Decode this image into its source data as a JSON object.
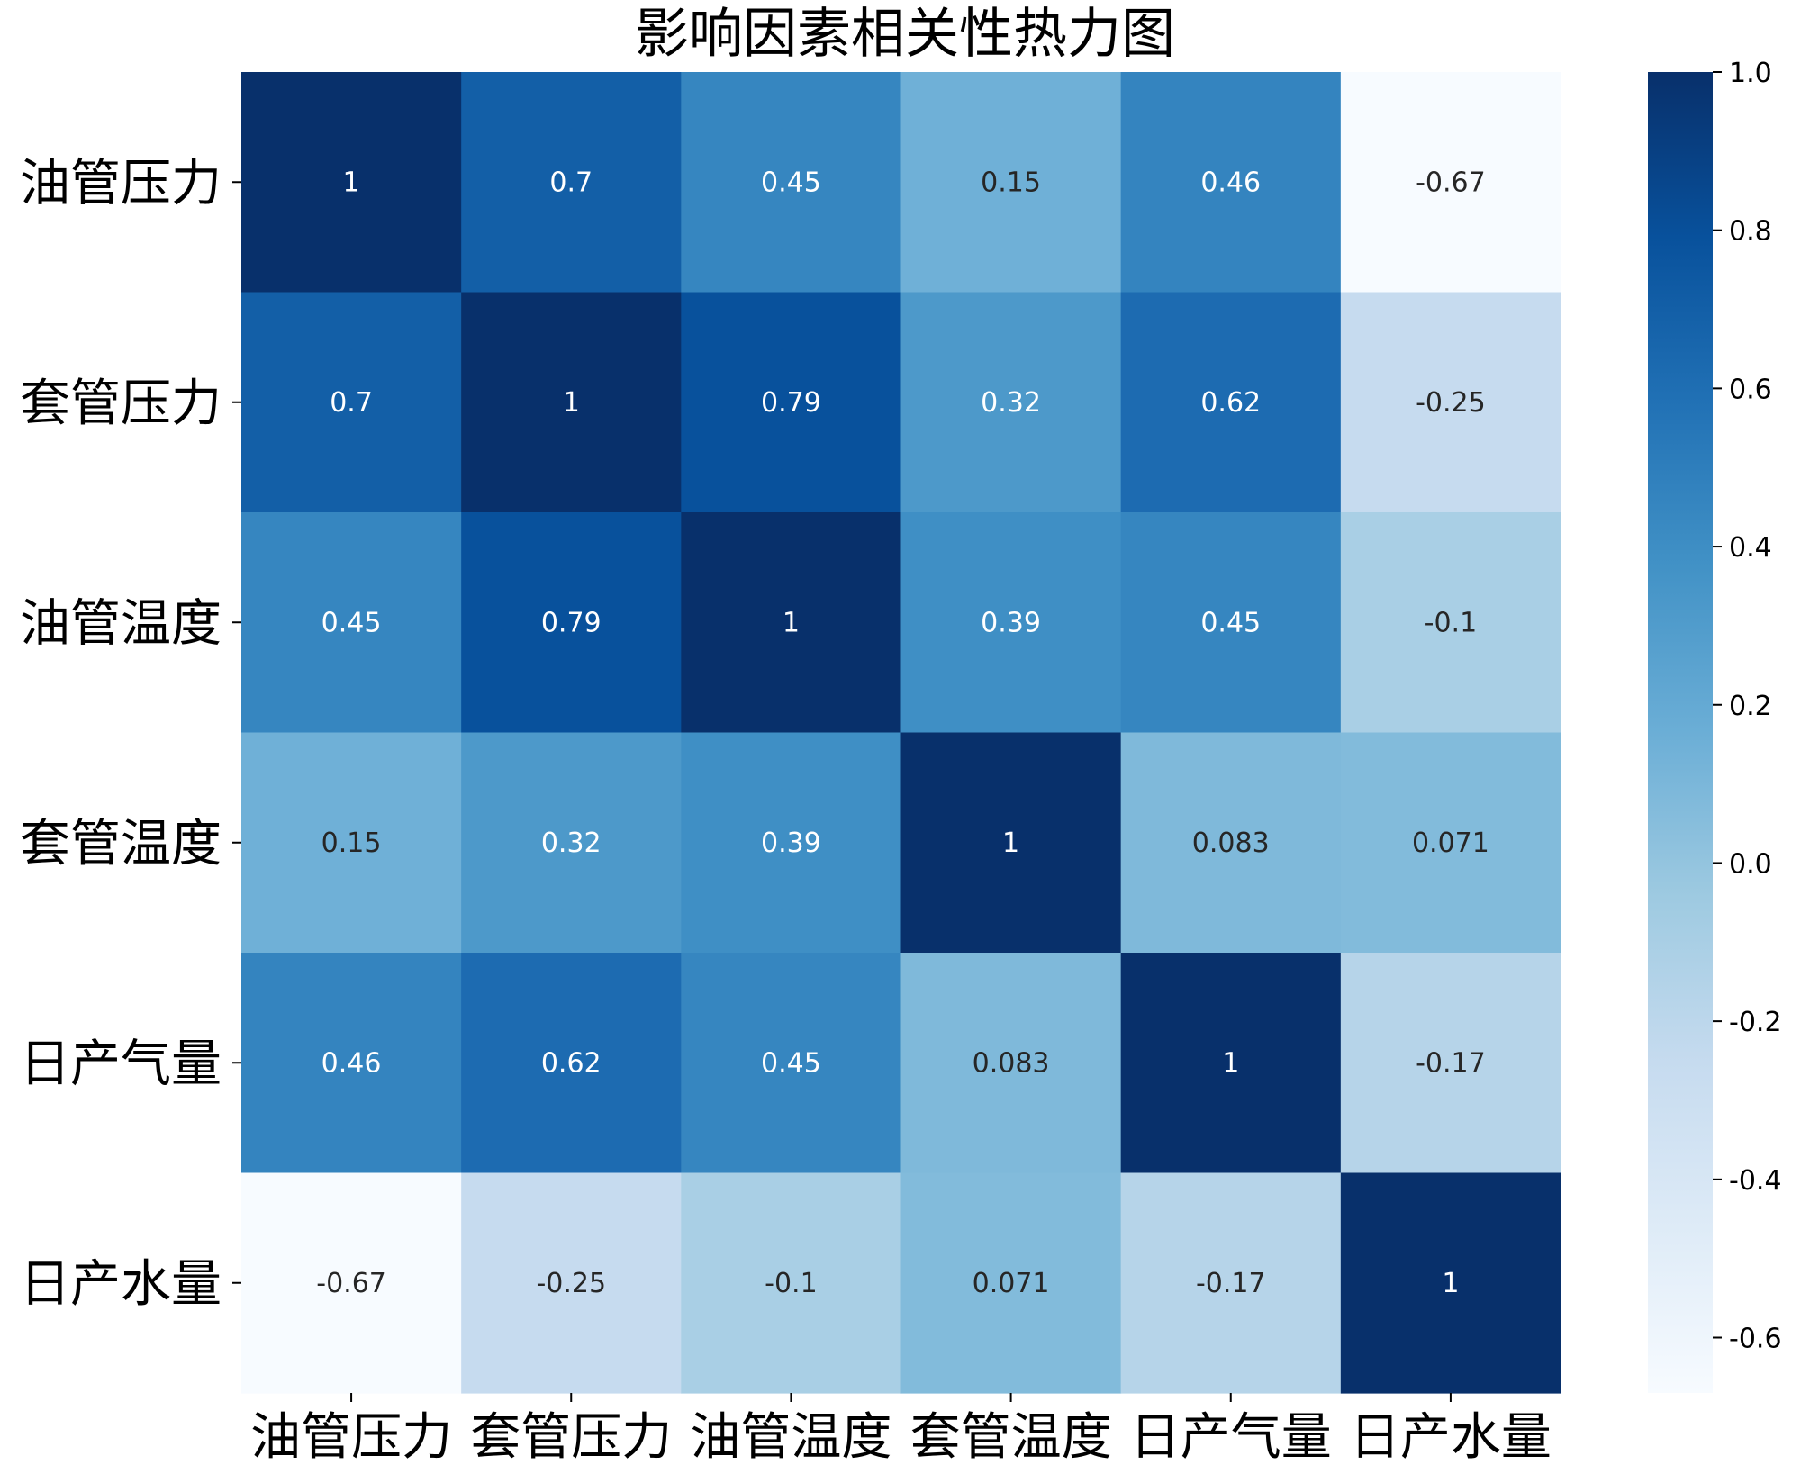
{
  "chart_data": {
    "type": "heatmap",
    "title": "影响因素相关性热力图",
    "row_labels": [
      "油管压力",
      "套管压力",
      "油管温度",
      "套管温度",
      "日产气量",
      "日产水量"
    ],
    "col_labels": [
      "油管压力",
      "套管压力",
      "油管温度",
      "套管温度",
      "日产气量",
      "日产水量"
    ],
    "values": [
      [
        1,
        0.7,
        0.45,
        0.15,
        0.46,
        -0.67
      ],
      [
        0.7,
        1,
        0.79,
        0.32,
        0.62,
        -0.25
      ],
      [
        0.45,
        0.79,
        1,
        0.39,
        0.45,
        -0.1
      ],
      [
        0.15,
        0.32,
        0.39,
        1,
        0.083,
        0.071
      ],
      [
        0.46,
        0.62,
        0.45,
        0.083,
        1,
        -0.17
      ],
      [
        -0.67,
        -0.25,
        -0.1,
        0.071,
        -0.17,
        1
      ]
    ],
    "annotations": [
      [
        "1",
        "0.7",
        "0.45",
        "0.15",
        "0.46",
        "-0.67"
      ],
      [
        "0.7",
        "1",
        "0.79",
        "0.32",
        "0.62",
        "-0.25"
      ],
      [
        "0.45",
        "0.79",
        "1",
        "0.39",
        "0.45",
        "-0.1"
      ],
      [
        "0.15",
        "0.32",
        "0.39",
        "1",
        "0.083",
        "0.071"
      ],
      [
        "0.46",
        "0.62",
        "0.45",
        "0.083",
        "1",
        "-0.17"
      ],
      [
        "-0.67",
        "-0.25",
        "-0.1",
        "0.071",
        "-0.17",
        "1"
      ]
    ],
    "colormap": "Blues",
    "vmin": -0.67,
    "vmax": 1,
    "colorbar": {
      "ticks": [
        1.0,
        0.8,
        0.6,
        0.4,
        0.2,
        0.0,
        -0.2,
        -0.4,
        -0.6
      ],
      "tick_labels": [
        "1.0",
        "0.8",
        "0.6",
        "0.4",
        "0.2",
        "0.0",
        "-0.2",
        "-0.4",
        "-0.6"
      ],
      "placement": "right"
    }
  }
}
